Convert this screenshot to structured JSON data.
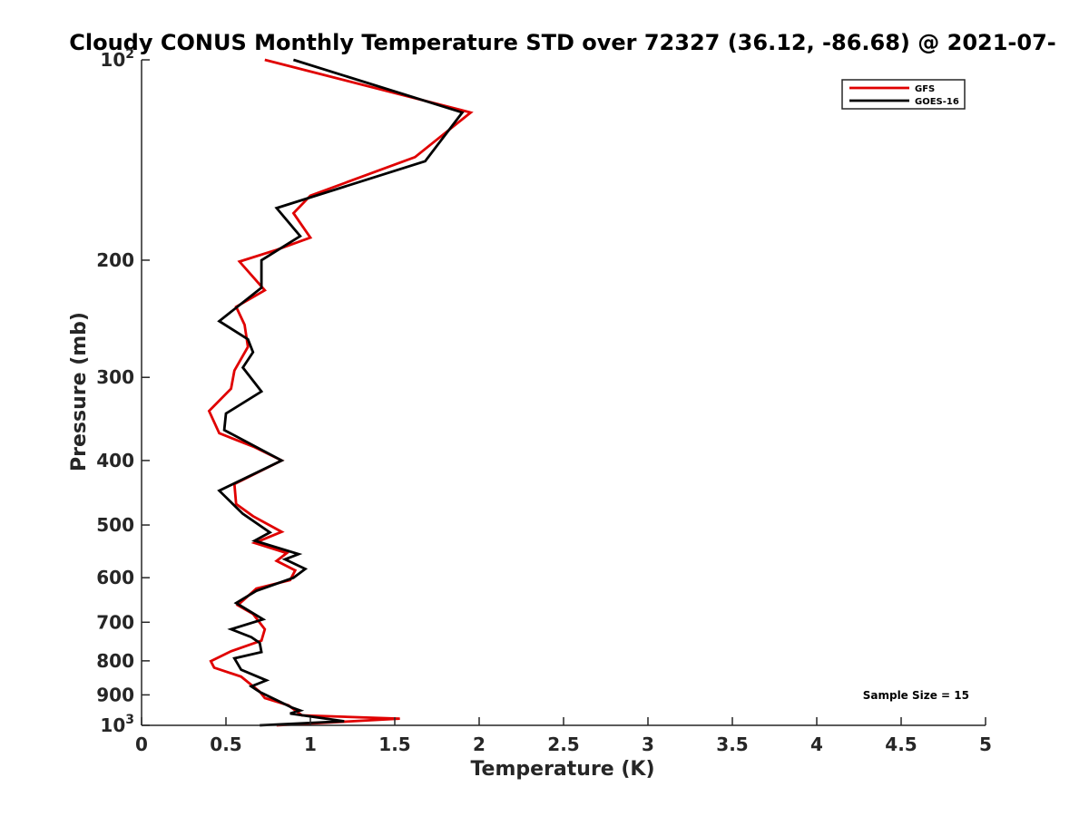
{
  "chart_data": {
    "type": "line",
    "title": "Cloudy CONUS Monthly Temperature STD over 72327 (36.12, -86.68) @ 2021-07-",
    "xlabel": "Temperature (K)",
    "ylabel": "Pressure (mb)",
    "xlim": [
      0,
      5
    ],
    "ylim": [
      100,
      1000
    ],
    "y_scale": "log",
    "y_reversed": true,
    "xticks": [
      0,
      0.5,
      1,
      1.5,
      2,
      2.5,
      3,
      3.5,
      4,
      4.5,
      5
    ],
    "xtick_labels": [
      "0",
      "0.5",
      "1",
      "1.5",
      "2",
      "2.5",
      "3",
      "3.5",
      "4",
      "4.5",
      "5"
    ],
    "yticks": [
      {
        "value": 100,
        "base": "10",
        "exp": "2",
        "label": ""
      },
      {
        "value": 200,
        "label": "200"
      },
      {
        "value": 300,
        "label": "300"
      },
      {
        "value": 400,
        "label": "400"
      },
      {
        "value": 500,
        "label": "500"
      },
      {
        "value": 600,
        "label": "600"
      },
      {
        "value": 700,
        "label": "700"
      },
      {
        "value": 800,
        "label": "800"
      },
      {
        "value": 900,
        "label": "900"
      },
      {
        "value": 1000,
        "base": "10",
        "exp": "3",
        "label": ""
      }
    ],
    "grid": false,
    "legend_position": "top-right",
    "annotation": "Sample Size = 15",
    "series": [
      {
        "name": "GFS",
        "color": "#e00000",
        "points": [
          [
            0.73,
            100
          ],
          [
            1.95,
            120
          ],
          [
            1.62,
            140
          ],
          [
            1.0,
            160
          ],
          [
            0.9,
            170
          ],
          [
            1.0,
            185
          ],
          [
            0.8,
            193
          ],
          [
            0.58,
            201
          ],
          [
            0.73,
            222
          ],
          [
            0.56,
            235
          ],
          [
            0.61,
            250
          ],
          [
            0.63,
            270
          ],
          [
            0.55,
            293
          ],
          [
            0.53,
            312
          ],
          [
            0.4,
            337
          ],
          [
            0.46,
            364
          ],
          [
            0.67,
            382
          ],
          [
            0.83,
            400
          ],
          [
            0.55,
            434
          ],
          [
            0.56,
            465
          ],
          [
            0.66,
            485
          ],
          [
            0.83,
            512
          ],
          [
            0.67,
            532
          ],
          [
            0.86,
            551
          ],
          [
            0.8,
            566
          ],
          [
            0.91,
            585
          ],
          [
            0.88,
            605
          ],
          [
            0.68,
            623
          ],
          [
            0.57,
            660
          ],
          [
            0.66,
            680
          ],
          [
            0.73,
            717
          ],
          [
            0.71,
            746
          ],
          [
            0.53,
            774
          ],
          [
            0.41,
            801
          ],
          [
            0.43,
            819
          ],
          [
            0.59,
            845
          ],
          [
            0.7,
            890
          ],
          [
            0.73,
            910
          ],
          [
            0.87,
            933
          ],
          [
            0.95,
            966
          ],
          [
            1.53,
            977
          ],
          [
            0.8,
            1000
          ]
        ]
      },
      {
        "name": "GOES-16",
        "color": "#000000",
        "points": [
          [
            0.9,
            100
          ],
          [
            1.9,
            120
          ],
          [
            1.68,
            142
          ],
          [
            0.8,
            167
          ],
          [
            0.94,
            184
          ],
          [
            0.71,
            200
          ],
          [
            0.71,
            220
          ],
          [
            0.46,
            247
          ],
          [
            0.63,
            263
          ],
          [
            0.66,
            275
          ],
          [
            0.6,
            290
          ],
          [
            0.71,
            315
          ],
          [
            0.5,
            340
          ],
          [
            0.49,
            360
          ],
          [
            0.83,
            400
          ],
          [
            0.46,
            444
          ],
          [
            0.6,
            481
          ],
          [
            0.76,
            513
          ],
          [
            0.67,
            528
          ],
          [
            0.93,
            553
          ],
          [
            0.85,
            563
          ],
          [
            0.97,
            582
          ],
          [
            0.9,
            600
          ],
          [
            0.68,
            628
          ],
          [
            0.56,
            655
          ],
          [
            0.72,
            693
          ],
          [
            0.53,
            717
          ],
          [
            0.65,
            737
          ],
          [
            0.7,
            752
          ],
          [
            0.71,
            776
          ],
          [
            0.55,
            793
          ],
          [
            0.59,
            825
          ],
          [
            0.74,
            856
          ],
          [
            0.65,
            874
          ],
          [
            0.7,
            891
          ],
          [
            0.89,
            940
          ],
          [
            0.94,
            950
          ],
          [
            0.88,
            960
          ],
          [
            1.2,
            986
          ],
          [
            0.7,
            1000
          ]
        ]
      }
    ]
  }
}
